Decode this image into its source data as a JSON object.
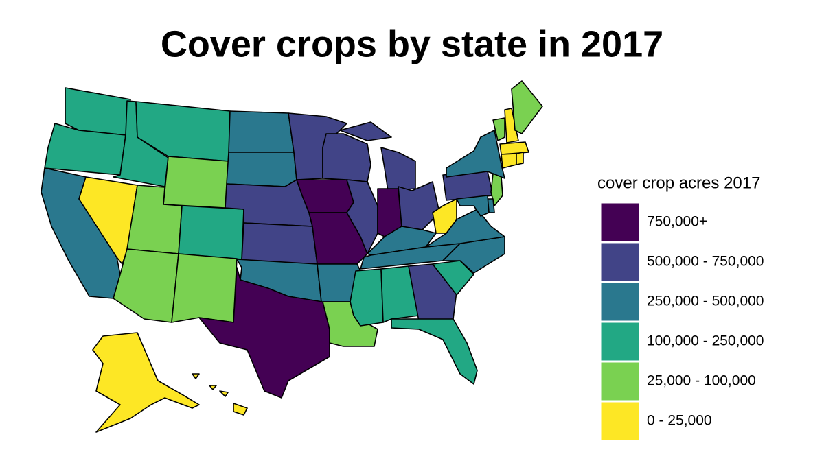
{
  "title": "Cover crops by state in 2017",
  "legend": {
    "title": "cover crop acres 2017",
    "classes": [
      {
        "label": "750,000+",
        "color": "#440154"
      },
      {
        "label": "500,000 - 750,000",
        "color": "#414487"
      },
      {
        "label": "250,000 - 500,000",
        "color": "#2a788e"
      },
      {
        "label": "100,000 - 250,000",
        "color": "#22a884"
      },
      {
        "label": "25,000 - 100,000",
        "color": "#7ad151"
      },
      {
        "label": "0 - 25,000",
        "color": "#fde725"
      }
    ]
  },
  "region_classes": [
    3,
    3,
    2,
    5,
    3,
    3,
    4,
    4,
    3,
    4,
    4,
    2,
    2,
    1,
    1,
    2,
    0,
    1,
    0,
    0,
    2,
    4,
    1,
    1,
    1,
    0,
    1,
    2,
    2,
    3,
    3,
    1,
    3,
    3,
    2,
    2,
    5,
    1,
    2,
    4,
    5,
    4,
    5,
    5,
    5,
    4,
    2,
    2,
    5,
    5
  ]
}
